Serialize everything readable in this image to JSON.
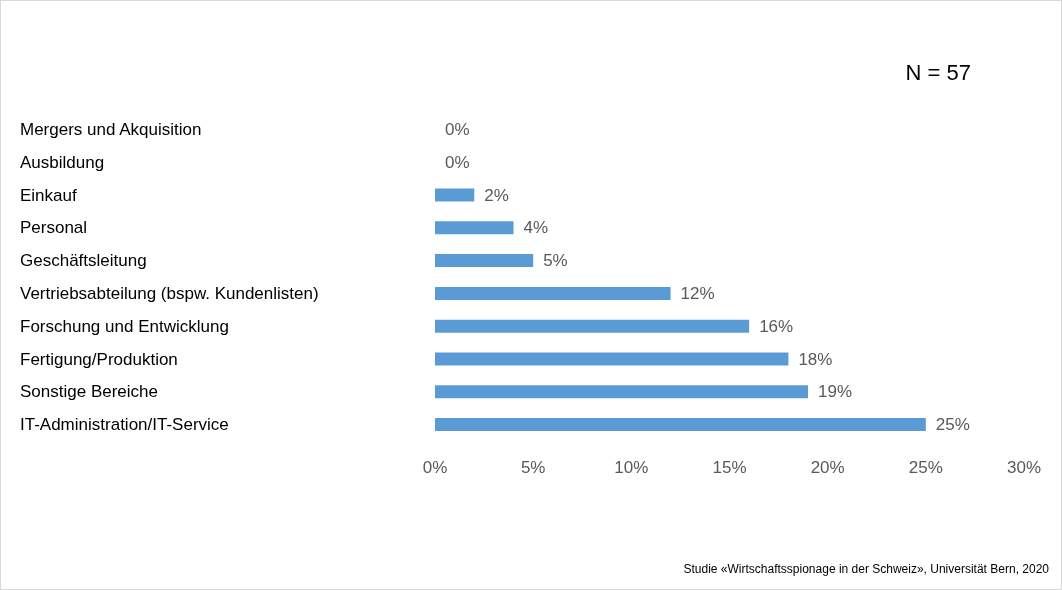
{
  "chart_data": {
    "type": "bar",
    "orientation": "horizontal",
    "categories": [
      "Mergers und Akquisition",
      "Ausbildung",
      "Einkauf",
      "Personal",
      "Geschäftsleitung",
      "Vertriebsabteilung (bspw. Kundenlisten)",
      "Forschung und Entwicklung",
      "Fertigung/Produktion",
      "Sonstige Bereiche",
      "IT-Administration/IT-Service"
    ],
    "values": [
      0,
      0,
      2,
      4,
      5,
      12,
      16,
      18,
      19,
      25
    ],
    "value_labels": [
      "0%",
      "0%",
      "2%",
      "4%",
      "5%",
      "12%",
      "16%",
      "18%",
      "19%",
      "25%"
    ],
    "color": "#5b9bd5",
    "xlim": [
      0,
      30
    ],
    "xticks": [
      {
        "value": 0,
        "label": "0%"
      },
      {
        "value": 5,
        "label": "5%"
      },
      {
        "value": 10,
        "label": "10%"
      },
      {
        "value": 15,
        "label": "15%"
      },
      {
        "value": 20,
        "label": "20%"
      },
      {
        "value": 25,
        "label": "25%"
      },
      {
        "value": 30,
        "label": "30%"
      }
    ],
    "annotations": [
      "N = 57",
      "Studie «Wirtschaftsspionage in der Schweiz», Universität Bern, 2020"
    ]
  }
}
